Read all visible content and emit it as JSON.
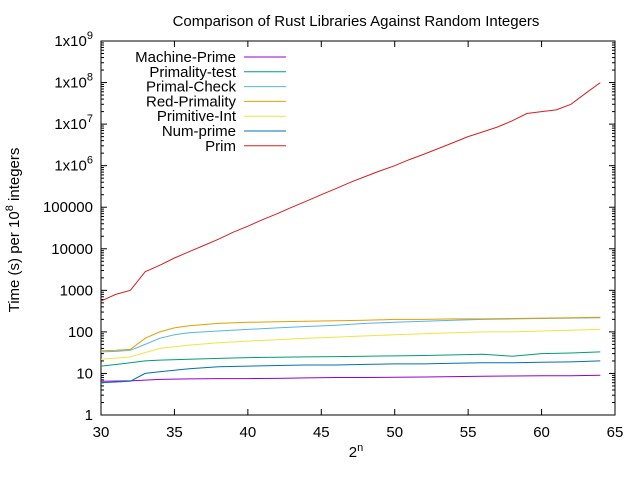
{
  "chart_data": {
    "type": "line",
    "title": "Comparison of Rust Libraries Against Random Integers",
    "xlabel": "2",
    "xlabel_sup": "n",
    "ylabel": "Time (s) per 10",
    "ylabel_sup": "8",
    "ylabel_suffix": " integers",
    "xlim": [
      30,
      65
    ],
    "ylim": [
      1,
      1000000000
    ],
    "y_scale": "log",
    "grid": false,
    "legend_position": "top-left",
    "x_ticks": [
      30,
      35,
      40,
      45,
      50,
      55,
      60,
      65
    ],
    "y_ticks": [
      {
        "value": 1,
        "label": "1"
      },
      {
        "value": 10,
        "label": "10"
      },
      {
        "value": 100,
        "label": "100"
      },
      {
        "value": 1000,
        "label": "1000"
      },
      {
        "value": 10000,
        "label": "10000"
      },
      {
        "value": 100000,
        "label": "100000"
      },
      {
        "value": 1000000,
        "label": "1x10",
        "sup": "6"
      },
      {
        "value": 10000000,
        "label": "1x10",
        "sup": "7"
      },
      {
        "value": 100000000,
        "label": "1x10",
        "sup": "8"
      },
      {
        "value": 1000000000,
        "label": "1x10",
        "sup": "9"
      }
    ],
    "series": [
      {
        "name": "Machine-Prime",
        "color": "#9400d3",
        "x": [
          30,
          32,
          34,
          36,
          38,
          40,
          42,
          44,
          46,
          48,
          50,
          52,
          54,
          56,
          58,
          60,
          62,
          64
        ],
        "y": [
          6.5,
          6.6,
          7.2,
          7.4,
          7.5,
          7.5,
          7.6,
          7.8,
          8.0,
          8.0,
          8.1,
          8.2,
          8.4,
          8.6,
          8.7,
          8.8,
          8.8,
          9.0
        ]
      },
      {
        "name": "Primality-test",
        "color": "#009e73",
        "x": [
          30,
          32,
          33,
          34,
          36,
          38,
          40,
          42,
          44,
          46,
          48,
          50,
          52,
          54,
          56,
          58,
          60,
          62,
          64
        ],
        "y": [
          15,
          18,
          20,
          21,
          22,
          23,
          24,
          24.5,
          25,
          25.5,
          26,
          26.5,
          27,
          28,
          29,
          26,
          30,
          31,
          33
        ]
      },
      {
        "name": "Primal-Check",
        "color": "#56b4e9",
        "x": [
          30,
          31,
          32,
          33,
          34,
          35,
          36,
          38,
          40,
          42,
          44,
          46,
          48,
          50,
          52,
          54,
          56,
          58,
          60,
          62,
          64
        ],
        "y": [
          33,
          34,
          36,
          50,
          70,
          85,
          95,
          105,
          115,
          125,
          135,
          145,
          160,
          170,
          180,
          190,
          200,
          205,
          210,
          215,
          220
        ]
      },
      {
        "name": "Red-Primality",
        "color": "#e69f00",
        "x": [
          30,
          31,
          32,
          33,
          34,
          35,
          36,
          38,
          40,
          42,
          44,
          46,
          48,
          50,
          52,
          54,
          56,
          58,
          60,
          62,
          64
        ],
        "y": [
          35,
          36,
          38,
          70,
          100,
          125,
          140,
          160,
          170,
          175,
          180,
          185,
          190,
          200,
          200,
          205,
          205,
          210,
          215,
          220,
          225
        ]
      },
      {
        "name": "Primitive-Int",
        "color": "#f0e442",
        "x": [
          30,
          32,
          34,
          36,
          38,
          40,
          42,
          44,
          46,
          48,
          50,
          52,
          54,
          56,
          58,
          60,
          62,
          64
        ],
        "y": [
          22,
          25,
          40,
          48,
          55,
          60,
          65,
          70,
          75,
          80,
          85,
          90,
          95,
          100,
          100,
          105,
          110,
          115
        ]
      },
      {
        "name": "Num-prime",
        "color": "#0072b2",
        "x": [
          30,
          32,
          33,
          34,
          36,
          38,
          40,
          42,
          44,
          46,
          48,
          50,
          52,
          54,
          56,
          58,
          60,
          62,
          64
        ],
        "y": [
          6.0,
          6.5,
          10,
          11,
          13,
          14.5,
          15,
          15.5,
          16,
          16,
          16.5,
          17,
          17,
          17.5,
          18,
          18,
          18.5,
          19,
          20
        ]
      },
      {
        "name": "Prim",
        "color": "#d62020",
        "x": [
          30,
          31,
          32,
          33,
          34,
          35,
          36,
          37,
          38,
          39,
          40,
          41,
          42,
          43,
          44,
          45,
          46,
          47,
          48,
          49,
          50,
          51,
          52,
          53,
          54,
          55,
          56,
          57,
          58,
          59,
          60,
          61,
          62,
          63,
          64
        ],
        "y": [
          550,
          800,
          1000,
          2800,
          4000,
          6000,
          8500,
          12000,
          17000,
          25000,
          35000,
          50000,
          70000,
          100000,
          140000,
          200000,
          280000,
          400000,
          550000,
          750000,
          1000000,
          1400000,
          1900000,
          2600000,
          3600000,
          5000000,
          6500000,
          8500000,
          12000000,
          18000000,
          20000000,
          22000000,
          30000000,
          55000000,
          100000000
        ]
      }
    ]
  }
}
